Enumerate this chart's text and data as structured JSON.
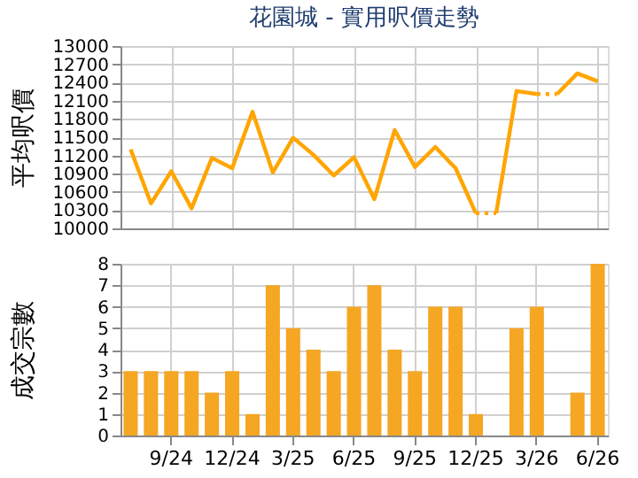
{
  "chart_data": [
    {
      "type": "line",
      "title": "花園城 - 實用呎價走勢",
      "ylabel": "平均呎價",
      "series": [
        {
          "color": "#ffa500",
          "line_style": "solid",
          "values": [
            11300,
            10410,
            10940,
            10330,
            11160,
            10990,
            11920,
            10920,
            11490,
            11210,
            10870,
            11170,
            10480,
            11620,
            11010,
            11340,
            10990,
            10250,
            null,
            null,
            null,
            null,
            null,
            null
          ]
        },
        {
          "color": "#ffa500",
          "line_style": "solid",
          "values": [
            null,
            null,
            null,
            null,
            null,
            null,
            null,
            null,
            null,
            null,
            null,
            null,
            null,
            null,
            null,
            null,
            null,
            null,
            10250,
            12260,
            12210,
            null,
            null,
            null
          ]
        },
        {
          "color": "#ffa500",
          "line_style": "solid",
          "values": [
            null,
            null,
            null,
            null,
            null,
            null,
            null,
            null,
            null,
            null,
            null,
            null,
            null,
            null,
            null,
            null,
            null,
            null,
            null,
            null,
            null,
            12210,
            12550,
            12420
          ]
        },
        {
          "color": "#ffa500",
          "line_style": "dotted",
          "values": [
            null,
            null,
            null,
            null,
            null,
            null,
            null,
            null,
            null,
            null,
            null,
            null,
            null,
            null,
            null,
            null,
            null,
            10250,
            10250,
            null,
            12210,
            12210,
            null,
            null
          ]
        }
      ],
      "ylim": [
        10000,
        13000
      ],
      "yticks": [
        10000,
        10300,
        10600,
        10900,
        11200,
        11500,
        11800,
        12100,
        12400,
        12700,
        13000
      ],
      "grid": true,
      "tick_labels": "y",
      "marker": "none"
    },
    {
      "type": "bar",
      "ylabel": "成交宗數",
      "categories": [
        null,
        null,
        "9/24",
        null,
        null,
        "12/24",
        null,
        null,
        "3/25",
        null,
        null,
        "6/25",
        null,
        null,
        "9/25",
        null,
        null,
        "12/25",
        null,
        null,
        "3/26",
        null,
        null,
        "6/26"
      ],
      "values": [
        3,
        3,
        3,
        3,
        2,
        3,
        1,
        7,
        5,
        4,
        3,
        6,
        7,
        4,
        3,
        6,
        6,
        1,
        0,
        5,
        6,
        0,
        2,
        8
      ],
      "color": "#f5a623",
      "ylim": [
        0,
        8
      ],
      "yticks": [
        0,
        1,
        2,
        3,
        4,
        5,
        6,
        7,
        8
      ],
      "grid": true
    }
  ]
}
